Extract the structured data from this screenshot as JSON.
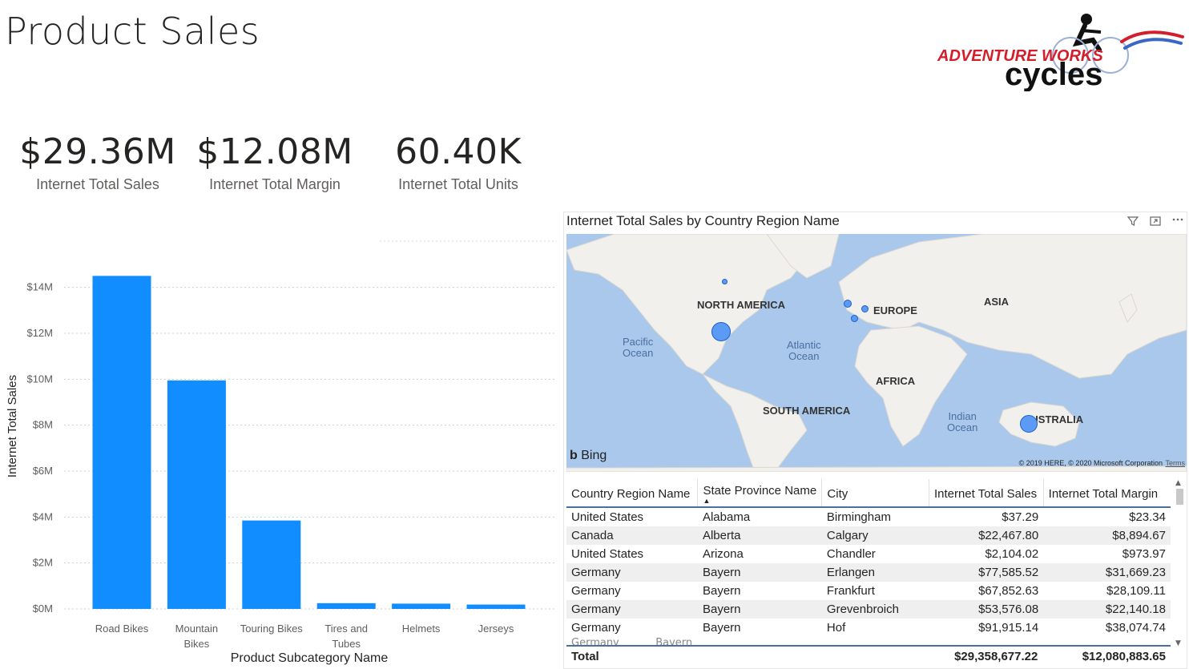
{
  "page": {
    "title": "Product Sales"
  },
  "logo": {
    "brand_line1": "ADVENTURE WORKS",
    "brand_line2": "cycles"
  },
  "kpis": [
    {
      "value": "$29.36M",
      "label": "Internet Total Sales"
    },
    {
      "value": "$12.08M",
      "label": "Internet Total Margin"
    },
    {
      "value": "60.40K",
      "label": "Internet Total Units"
    }
  ],
  "chart_data": {
    "type": "bar",
    "categories": [
      "Road Bikes",
      "Mountain Bikes",
      "Touring Bikes",
      "Tires and Tubes",
      "Helmets",
      "Jerseys"
    ],
    "category_lines": [
      [
        "Road Bikes"
      ],
      [
        "Mountain",
        "Bikes"
      ],
      [
        "Touring Bikes"
      ],
      [
        "Tires and",
        "Tubes"
      ],
      [
        "Helmets"
      ],
      [
        "Jerseys"
      ]
    ],
    "values": [
      14.5,
      9.95,
      3.85,
      0.25,
      0.23,
      0.19
    ],
    "yticks": [
      "$0M",
      "$2M",
      "$4M",
      "$6M",
      "$8M",
      "$10M",
      "$12M",
      "$14M"
    ],
    "ylim": [
      0,
      15
    ],
    "xlabel": "Product Subcategory Name",
    "ylabel": "Internet Total Sales",
    "bar_color": "#118dff",
    "grid": true
  },
  "map": {
    "title": "Internet Total Sales by Country Region Name",
    "continents": [
      "NORTH AMERICA",
      "EUROPE",
      "ASIA",
      "AFRICA",
      "SOUTH AMERICA",
      "AUSTRALIA"
    ],
    "oceans": [
      [
        "Pacific",
        "Ocean"
      ],
      [
        "Atlantic",
        "Ocean"
      ],
      [
        "Indian",
        "Ocean"
      ]
    ],
    "provider": "Bing",
    "copyright": "© 2019 HERE, © 2020 Microsoft Corporation",
    "terms": "Terms",
    "bubble_color": "#5b9bf5"
  },
  "table": {
    "columns": [
      "Country Region Name",
      "State Province Name",
      "City",
      "Internet Total Sales",
      "Internet Total Margin"
    ],
    "sort_indicator": "▲",
    "rows": [
      [
        "United States",
        "Alabama",
        "Birmingham",
        "$37.29",
        "$23.34"
      ],
      [
        "Canada",
        "Alberta",
        "Calgary",
        "$22,467.80",
        "$8,894.67"
      ],
      [
        "United States",
        "Arizona",
        "Chandler",
        "$2,104.02",
        "$973.97"
      ],
      [
        "Germany",
        "Bayern",
        "Erlangen",
        "$77,585.52",
        "$31,669.23"
      ],
      [
        "Germany",
        "Bayern",
        "Frankfurt",
        "$67,852.63",
        "$28,109.11"
      ],
      [
        "Germany",
        "Bayern",
        "Grevenbroich",
        "$53,576.08",
        "$22,140.18"
      ],
      [
        "Germany",
        "Bayern",
        "Hof",
        "$91,915.14",
        "$38,074.74"
      ]
    ],
    "total": {
      "label": "Total",
      "sales": "$29,358,677.22",
      "margin": "$12,080,883.65"
    }
  }
}
